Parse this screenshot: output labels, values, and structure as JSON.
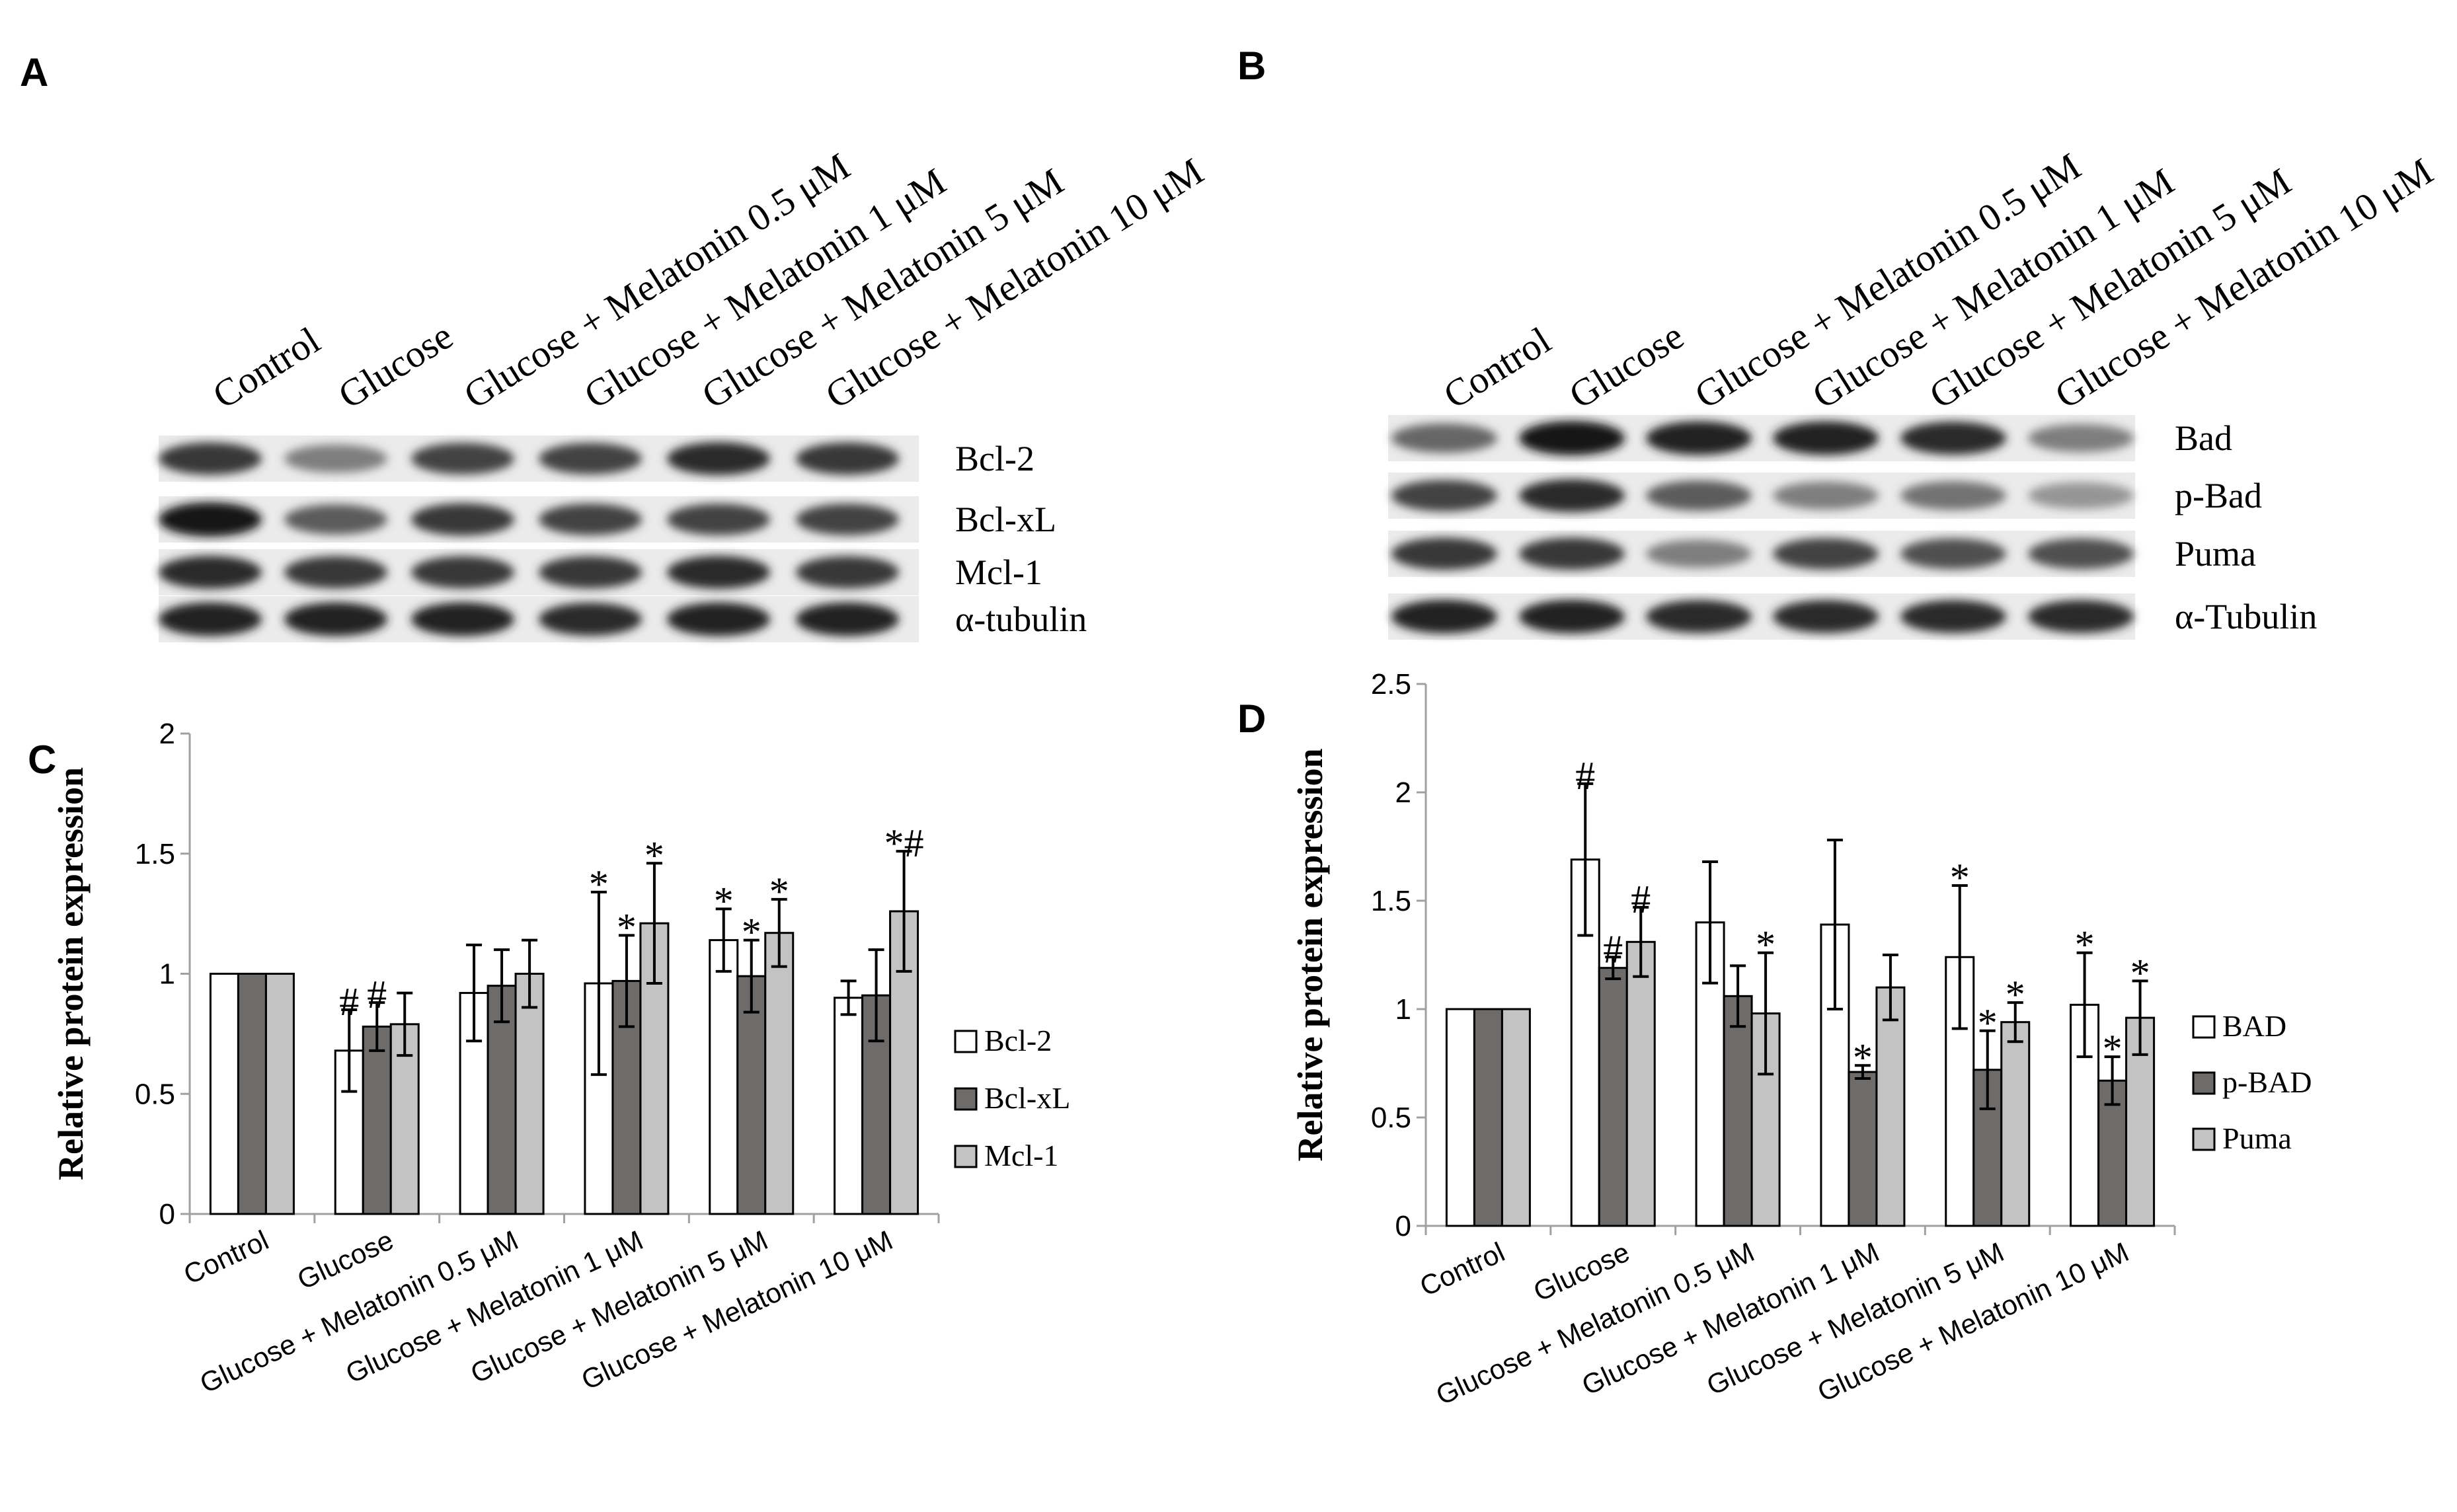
{
  "panels": {
    "A": "A",
    "B": "B",
    "C": "C",
    "D": "D"
  },
  "blot_A": {
    "lanes": [
      "Control",
      "Glucose",
      "Glucose + Melatonin 0.5 μM",
      "Glucose + Melatonin 1 μM",
      "Glucose + Melatonin 5 μM",
      "Glucose + Melatonin 10 μM"
    ],
    "rows": [
      {
        "label": "Bcl-2",
        "intensity": [
          0.85,
          0.55,
          0.8,
          0.8,
          0.9,
          0.85
        ]
      },
      {
        "label": "Bcl-xL",
        "intensity": [
          1.0,
          0.7,
          0.85,
          0.8,
          0.8,
          0.8
        ]
      },
      {
        "label": "Mcl-1",
        "intensity": [
          0.9,
          0.85,
          0.85,
          0.85,
          0.9,
          0.85
        ]
      },
      {
        "label": "α-tubulin",
        "intensity": [
          0.95,
          0.95,
          0.95,
          0.9,
          0.95,
          0.95
        ]
      }
    ]
  },
  "blot_B": {
    "lanes": [
      "Control",
      "Glucose",
      "Glucose + Melatonin 0.5 μM",
      "Glucose + Melatonin 1 μM",
      "Glucose + Melatonin 5 μM",
      "Glucose + Melatonin 10 μM"
    ],
    "rows": [
      {
        "label": "Bad",
        "intensity": [
          0.65,
          1.0,
          0.95,
          0.95,
          0.9,
          0.55
        ]
      },
      {
        "label": "p-Bad",
        "intensity": [
          0.8,
          0.9,
          0.7,
          0.55,
          0.6,
          0.45
        ]
      },
      {
        "label": "Puma",
        "intensity": [
          0.85,
          0.85,
          0.55,
          0.8,
          0.75,
          0.75
        ]
      },
      {
        "label": "α-Tubulin",
        "intensity": [
          0.95,
          0.95,
          0.9,
          0.9,
          0.9,
          0.9
        ]
      }
    ]
  },
  "chart_data": [
    {
      "id": "C",
      "type": "bar",
      "title": "",
      "xlabel": "",
      "ylabel": "Relative protein expression",
      "ylim": [
        0,
        2
      ],
      "yticks": [
        "0",
        "0.5",
        "1",
        "1.5",
        "2"
      ],
      "yticks_values": [
        0,
        0.5,
        1,
        1.5,
        2
      ],
      "categories": [
        "Control",
        "Glucose",
        "Glucose + Melatonin 0.5 μM",
        "Glucose + Melatonin 1 μM",
        "Glucose + Melatonin 5 μM",
        "Glucose + Melatonin 10 μM"
      ],
      "legend_position": "right",
      "series": [
        {
          "name": "Bcl-2",
          "color": "#ffffff",
          "values": [
            1.0,
            0.68,
            0.92,
            0.96,
            1.14,
            0.9
          ],
          "errors": [
            0,
            0.17,
            0.2,
            0.38,
            0.13,
            0.07
          ],
          "annotations": [
            "",
            "#",
            "",
            "*",
            "*",
            ""
          ]
        },
        {
          "name": "Bcl-xL",
          "color": "#6e6b6b",
          "values": [
            1.0,
            0.78,
            0.95,
            0.97,
            0.99,
            0.91
          ],
          "errors": [
            0,
            0.1,
            0.15,
            0.19,
            0.15,
            0.19
          ],
          "annotations": [
            "",
            "#",
            "",
            "*",
            "*",
            ""
          ]
        },
        {
          "name": "Mcl-1",
          "color": "#c3c3c3",
          "values": [
            1.0,
            0.79,
            1.0,
            1.21,
            1.17,
            1.26
          ],
          "errors": [
            0,
            0.13,
            0.14,
            0.25,
            0.14,
            0.25
          ],
          "annotations": [
            "",
            "",
            "",
            "*",
            "*",
            "*#"
          ]
        }
      ]
    },
    {
      "id": "D",
      "type": "bar",
      "title": "",
      "xlabel": "",
      "ylabel": "Relative protein expression",
      "ylim": [
        0,
        2.5
      ],
      "yticks": [
        "0",
        "0.5",
        "1",
        "1.5",
        "2",
        "2.5"
      ],
      "yticks_values": [
        0,
        0.5,
        1,
        1.5,
        2,
        2.5
      ],
      "categories": [
        "Control",
        "Glucose",
        "Glucose + Melatonin 0.5 μM",
        "Glucose + Melatonin 1 μM",
        "Glucose + Melatonin 5 μM",
        "Glucose + Melatonin 10 μM"
      ],
      "legend_position": "right",
      "series": [
        {
          "name": "BAD",
          "color": "#ffffff",
          "values": [
            1.0,
            1.69,
            1.4,
            1.39,
            1.24,
            1.02
          ],
          "errors": [
            0,
            0.35,
            0.28,
            0.39,
            0.33,
            0.24
          ],
          "annotations": [
            "",
            "#",
            "",
            "",
            "*",
            "*"
          ]
        },
        {
          "name": "p-BAD",
          "color": "#6e6b6b",
          "values": [
            1.0,
            1.19,
            1.06,
            0.71,
            0.72,
            0.67
          ],
          "errors": [
            0,
            0.05,
            0.14,
            0.03,
            0.18,
            0.11
          ],
          "annotations": [
            "",
            "#",
            "",
            "*",
            "*",
            "*"
          ]
        },
        {
          "name": "Puma",
          "color": "#c3c3c3",
          "values": [
            1.0,
            1.31,
            0.98,
            1.1,
            0.94,
            0.96
          ],
          "errors": [
            0,
            0.16,
            0.28,
            0.15,
            0.09,
            0.17
          ],
          "annotations": [
            "",
            "#",
            "*",
            "",
            "*",
            "*"
          ]
        }
      ]
    }
  ]
}
